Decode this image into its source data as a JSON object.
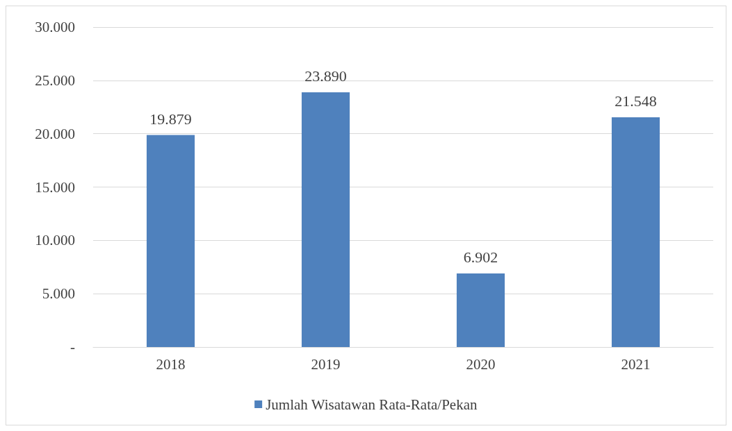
{
  "chart_data": {
    "type": "bar",
    "categories": [
      "2018",
      "2019",
      "2020",
      "2021"
    ],
    "series": [
      {
        "name": "Jumlah Wisatawan Rata-Rata/Pekan",
        "color": "#4f81bd",
        "values": [
          19879,
          23890,
          6902,
          21548
        ],
        "value_labels": [
          "19.879",
          "23.890",
          "6.902",
          "21.548"
        ]
      }
    ],
    "ylim": [
      0,
      30000
    ],
    "yticks": [
      {
        "value": 0,
        "label": "-"
      },
      {
        "value": 5000,
        "label": "5.000"
      },
      {
        "value": 10000,
        "label": "10.000"
      },
      {
        "value": 15000,
        "label": "15.000"
      },
      {
        "value": 20000,
        "label": "20.000"
      },
      {
        "value": 25000,
        "label": "25.000"
      },
      {
        "value": 30000,
        "label": "30.000"
      }
    ],
    "grid": "y",
    "legend": "bottom"
  }
}
